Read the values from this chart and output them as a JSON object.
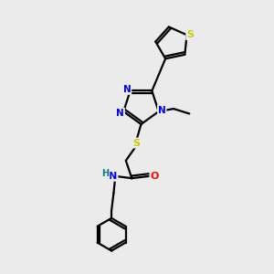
{
  "bg_color": "#ebebeb",
  "bond_color": "#000000",
  "N_color": "#0000ff",
  "O_color": "#ff0000",
  "S_color": "#cccc00",
  "H_color": "#008080",
  "linewidth": 1.6,
  "figsize": [
    3.0,
    3.0
  ],
  "dpi": 100,
  "xlim": [
    0,
    10
  ],
  "ylim": [
    0,
    10
  ]
}
